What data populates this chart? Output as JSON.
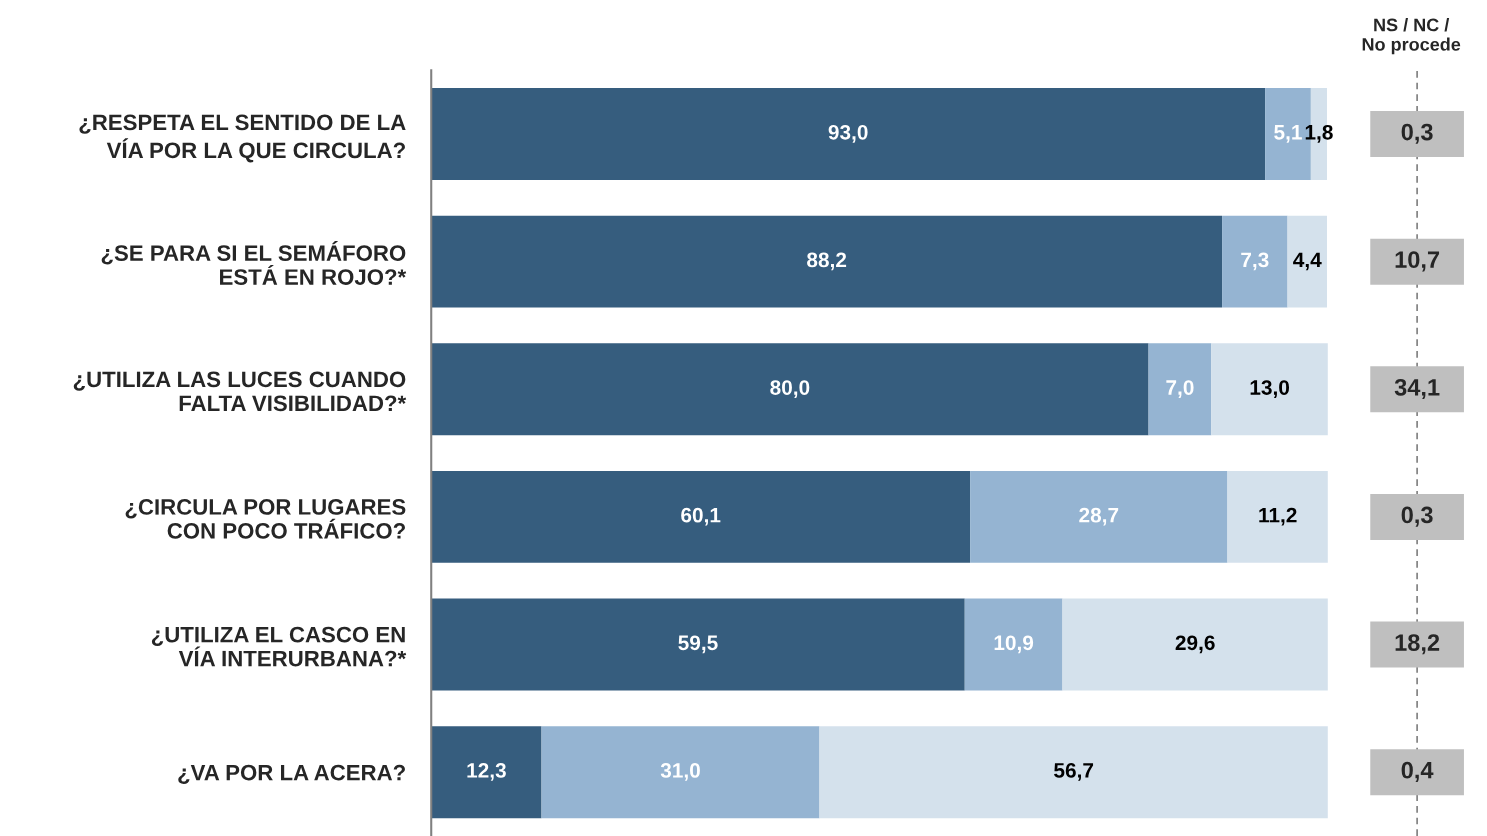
{
  "chart_data": [
    {
      "type": "bar",
      "orientation": "horizontal",
      "stacked": true,
      "tick_labels": "y",
      "xlim": [
        0,
        100
      ],
      "grid": false,
      "legend": false,
      "categories": [
        "¿RESPETA EL SENTIDO DE LA\nVÍA POR LA QUE CIRCULA?",
        "¿SE PARA SI EL SEMÁFORO\nESTÁ EN ROJO?*",
        "¿UTILIZA LAS LUCES CUANDO\nFALTA VISIBILIDAD?*",
        "¿CIRCULA POR LUGARES\nCON POCO TRÁFICO?",
        "¿UTILIZA EL CASCO EN\nVÍA INTERURBANA?*",
        "¿VA POR LA ACERA?"
      ],
      "series": [
        {
          "color": "#365d7e",
          "values": [
            93.0,
            88.2,
            80.0,
            60.1,
            59.5,
            12.3
          ],
          "value_labels": [
            "93,0",
            "88,2",
            "80,0",
            "60,1",
            "59,5",
            "12,3"
          ]
        },
        {
          "color": "#95b4d2",
          "values": [
            5.1,
            7.3,
            7.0,
            28.7,
            10.9,
            31.0
          ],
          "value_labels": [
            "5,1",
            "7,3",
            "7,0",
            "28,7",
            "10,9",
            "31,0"
          ]
        },
        {
          "color": "#d4e1ec",
          "values": [
            1.8,
            4.4,
            13.0,
            11.2,
            29.6,
            56.7
          ],
          "value_labels": [
            "1,8",
            "4,4",
            "13,0",
            "11,2",
            "29,6",
            "56,7"
          ]
        }
      ]
    },
    {
      "type": "other",
      "title": "NS / NC /\nNo procede",
      "color": "#bfbfbf",
      "value_labels": [
        "0,3",
        "10,7",
        "34,1",
        "0,3",
        "18,2",
        "0,4"
      ]
    }
  ]
}
